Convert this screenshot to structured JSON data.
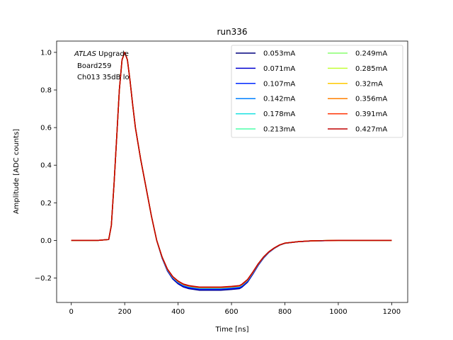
{
  "chart_data": {
    "type": "line",
    "title": "run336",
    "xlabel": "Time [ns]",
    "ylabel": "Amplitude [ADC counts]",
    "xlim": [
      -55,
      1260
    ],
    "ylim": [
      -0.33,
      1.06
    ],
    "xticks": [
      0,
      200,
      400,
      600,
      800,
      1000,
      1200
    ],
    "yticks": [
      -0.2,
      0.0,
      0.2,
      0.4,
      0.6,
      0.8,
      1.0
    ],
    "xtick_labels": [
      "0",
      "200",
      "400",
      "600",
      "800",
      "1000",
      "1200"
    ],
    "ytick_labels": [
      "−0.2",
      "0.0",
      "0.2",
      "0.4",
      "0.6",
      "0.8",
      "1.0"
    ],
    "legend_position": "top-right",
    "legend_columns": 2,
    "annotation": {
      "line1_italic": "ATLAS",
      "line1_rest": " Upgrade",
      "line2": "Board259",
      "line3": "Ch013 35dB lo"
    },
    "series": [
      {
        "name": "0.053mA",
        "color": "#00007f",
        "undershoot": -0.265
      },
      {
        "name": "0.071mA",
        "color": "#0000d0",
        "undershoot": -0.262
      },
      {
        "name": "0.107mA",
        "color": "#0028ff",
        "undershoot": -0.258
      },
      {
        "name": "0.142mA",
        "color": "#0080ff",
        "undershoot": -0.255
      },
      {
        "name": "0.178mA",
        "color": "#15e0e0",
        "undershoot": -0.253
      },
      {
        "name": "0.213mA",
        "color": "#4dffaa",
        "undershoot": -0.252
      },
      {
        "name": "0.249mA",
        "color": "#88ff6e",
        "undershoot": -0.251
      },
      {
        "name": "0.285mA",
        "color": "#c3ff34",
        "undershoot": -0.251
      },
      {
        "name": "0.32mA",
        "color": "#ffc800",
        "undershoot": -0.25
      },
      {
        "name": "0.356mA",
        "color": "#ff8000",
        "undershoot": -0.25
      },
      {
        "name": "0.391mA",
        "color": "#ff3000",
        "undershoot": -0.25
      },
      {
        "name": "0.427mA",
        "color": "#c00000",
        "undershoot": -0.248
      }
    ],
    "x": [
      0,
      100,
      140,
      150,
      160,
      170,
      180,
      190,
      200,
      210,
      220,
      230,
      240,
      260,
      280,
      300,
      320,
      340,
      360,
      380,
      400,
      420,
      440,
      460,
      480,
      520,
      560,
      600,
      630,
      640,
      660,
      680,
      700,
      720,
      740,
      760,
      780,
      800,
      850,
      900,
      1000,
      1100,
      1200
    ],
    "shape": [
      0.0,
      0.0,
      0.005,
      0.08,
      0.3,
      0.55,
      0.8,
      0.96,
      1.0,
      0.96,
      0.85,
      0.72,
      0.6,
      0.43,
      0.28,
      0.13,
      0.0,
      -0.11,
      -0.19,
      -0.24,
      -0.27,
      -0.29,
      -0.3,
      -0.305,
      -0.31,
      -0.31,
      -0.31,
      -0.305,
      -0.3,
      -0.29,
      -0.26,
      -0.21,
      -0.155,
      -0.11,
      -0.075,
      -0.05,
      -0.03,
      -0.018,
      -0.008,
      -0.003,
      0.0,
      0.0,
      0.0
    ]
  }
}
